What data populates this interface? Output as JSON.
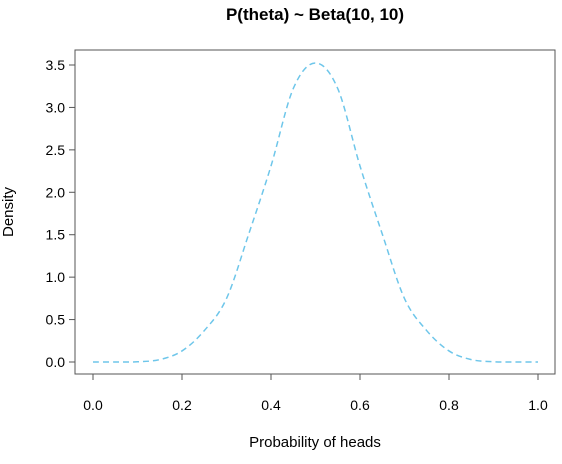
{
  "chart_data": {
    "type": "line",
    "title": "P(theta) ~ Beta(10, 10)",
    "xlabel": "Probability of heads",
    "ylabel": "Density",
    "xlim": [
      0.0,
      1.0
    ],
    "ylim": [
      0.0,
      3.5
    ],
    "x_ticks": [
      "0.0",
      "0.2",
      "0.4",
      "0.6",
      "0.8",
      "1.0"
    ],
    "y_ticks": [
      "0.0",
      "0.5",
      "1.0",
      "1.5",
      "2.0",
      "2.5",
      "3.0",
      "3.5"
    ],
    "grid": false,
    "series": [
      {
        "color": "#6ec6ea",
        "line_style": "dashed",
        "x": [
          0.0,
          0.05,
          0.1,
          0.15,
          0.2,
          0.25,
          0.3,
          0.35,
          0.4,
          0.45,
          0.5,
          0.55,
          0.6,
          0.65,
          0.7,
          0.75,
          0.8,
          0.85,
          0.9,
          0.95,
          1.0
        ],
        "y": [
          0.0,
          0.0,
          0.0026,
          0.0284,
          0.1303,
          0.3691,
          0.7479,
          1.5087,
          2.3099,
          3.2219,
          3.5239,
          3.2219,
          2.3099,
          1.5087,
          0.7479,
          0.3691,
          0.1303,
          0.0284,
          0.0026,
          0.0,
          0.0
        ]
      }
    ]
  }
}
